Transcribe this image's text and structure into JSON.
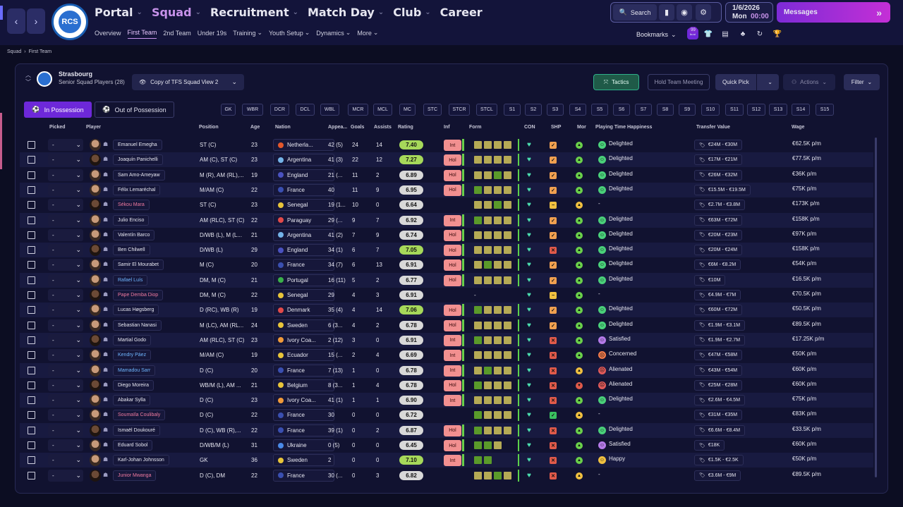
{
  "nav": {
    "main": [
      {
        "label": "Portal",
        "active": false
      },
      {
        "label": "Squad",
        "active": true
      },
      {
        "label": "Recruitment",
        "active": false
      },
      {
        "label": "Match Day",
        "active": false
      },
      {
        "label": "Club",
        "active": false
      },
      {
        "label": "Career",
        "active": false
      }
    ],
    "sub": [
      {
        "label": "Overview",
        "active": false,
        "dd": false
      },
      {
        "label": "First Team",
        "active": true,
        "dd": false
      },
      {
        "label": "2nd Team",
        "active": false,
        "dd": false
      },
      {
        "label": "Under 19s",
        "active": false,
        "dd": false
      },
      {
        "label": "Training",
        "active": false,
        "dd": true
      },
      {
        "label": "Youth Setup",
        "active": false,
        "dd": true
      },
      {
        "label": "Dynamics",
        "active": false,
        "dd": true
      },
      {
        "label": "More",
        "active": false,
        "dd": true
      }
    ]
  },
  "topbar": {
    "search_label": "Search",
    "date": "1/6/2026",
    "day": "Mon",
    "time": "00:00",
    "messages_label": "Messages",
    "bookmarks_label": "Bookmarks",
    "badge": "99"
  },
  "breadcrumb": {
    "root": "Squad",
    "current": "First Team"
  },
  "team": {
    "name": "Strasbourg",
    "subtitle": "Senior Squad Players (28)"
  },
  "view_name": "Copy of TFS Squad View 2",
  "buttons": {
    "tactics": "Tactics",
    "hold_meeting": "Hold Team Meeting",
    "quick_pick": "Quick Pick",
    "actions": "Actions",
    "filter": "Filter"
  },
  "tabs": {
    "in_possession": "In Possession",
    "out_possession": "Out of Possession"
  },
  "positions": [
    "GK",
    "WBR",
    "DCR",
    "DCL",
    "WBL",
    "MCR",
    "MCL",
    "MC",
    "STC",
    "STCR",
    "STCL",
    "S1",
    "S2",
    "S3",
    "S4",
    "S5",
    "S6",
    "S7",
    "S8",
    "S9",
    "S10",
    "S11",
    "S12",
    "S13",
    "S14",
    "S15"
  ],
  "columns": {
    "picked": "Picked",
    "player": "Player",
    "position": "Position",
    "age": "Age",
    "nation": "Nation",
    "apps": "Appea...",
    "goals": "Goals",
    "assists": "Assists",
    "rating": "Rating",
    "inf": "Inf",
    "form": "Form",
    "con": "CON",
    "shp": "SHP",
    "mor": "Mor",
    "pth": "Playing Time Happiness",
    "tv": "Transfer Value",
    "wage": "Wage"
  },
  "colors": {
    "accent": "#6d28d9",
    "rating_good": "#8fd14a",
    "rating_ok": "#d8d8d8",
    "inf": "#f29090"
  },
  "rows": [
    {
      "picked": "-",
      "name": "Emanuel Emegha",
      "nc": "",
      "pos": "ST (C)",
      "age": "23",
      "nation": "Netherla...",
      "ncol": "#e2572b",
      "apps": "42 (5)",
      "goals": "24",
      "assists": "14",
      "rating": "7.40",
      "rc": "#a6d85a",
      "inf": "Int",
      "form": [
        "o",
        "o",
        "o",
        "o"
      ],
      "shp": "ok",
      "mor": "g",
      "pth": "Delighted",
      "ph": "g",
      "tv": "€24M - €30M",
      "wage": "€62.5K p/m"
    },
    {
      "picked": "-",
      "name": "Joaquín Panichelli",
      "nc": "",
      "pos": "AM (C), ST (C)",
      "age": "23",
      "nation": "Argentina",
      "ncol": "#74b3e8",
      "apps": "41 (3)",
      "goals": "22",
      "assists": "12",
      "rating": "7.27",
      "rc": "#a6d85a",
      "inf": "Hol",
      "form": [
        "o",
        "o",
        "o",
        "o"
      ],
      "shp": "ok",
      "mor": "g",
      "pth": "Delighted",
      "ph": "g",
      "tv": "€17M - €21M",
      "wage": "€77.5K p/m"
    },
    {
      "picked": "-",
      "name": "Sam Amo-Ameyaw",
      "nc": "",
      "pos": "M (R), AM (RL),...",
      "age": "19",
      "nation": "England",
      "ncol": "#4a52c0",
      "apps": "21 (...",
      "goals": "11",
      "assists": "2",
      "rating": "6.89",
      "rc": "#d8d8d8",
      "inf": "Hol",
      "form": [
        "o",
        "o",
        "g",
        "o"
      ],
      "shp": "ok",
      "mor": "g",
      "pth": "Delighted",
      "ph": "g",
      "tv": "€26M - €32M",
      "wage": "€36K p/m"
    },
    {
      "picked": "-",
      "name": "Félix Lemaréchal",
      "nc": "",
      "pos": "M/AM (C)",
      "age": "22",
      "nation": "France",
      "ncol": "#3a4fb0",
      "apps": "40",
      "goals": "11",
      "assists": "9",
      "rating": "6.95",
      "rc": "#d8d8d8",
      "inf": "Hol",
      "form": [
        "g",
        "o",
        "o",
        "o"
      ],
      "shp": "ok",
      "mor": "g",
      "pth": "Delighted",
      "ph": "g",
      "tv": "€15.5M - €19.5M",
      "wage": "€75K p/m"
    },
    {
      "picked": "-",
      "name": "Sékou Mara",
      "nc": "red",
      "pos": "ST (C)",
      "age": "23",
      "nation": "Senegal",
      "ncol": "#e8c43a",
      "apps": "19 (1...",
      "goals": "10",
      "assists": "0",
      "rating": "6.64",
      "rc": "#d8d8d8",
      "inf": "",
      "form": [
        "o",
        "o",
        "g",
        "o"
      ],
      "shp": "mid",
      "mor": "y",
      "pth": "-",
      "ph": "",
      "tv": "€2.7M - €3.8M",
      "wage": "€173K p/m"
    },
    {
      "picked": "-",
      "name": "Julio Enciso",
      "nc": "",
      "pos": "AM (RLC), ST (C)",
      "age": "22",
      "nation": "Paraguay",
      "ncol": "#e24a4a",
      "apps": "29 (...",
      "goals": "9",
      "assists": "7",
      "rating": "6.92",
      "rc": "#d8d8d8",
      "inf": "Int",
      "form": [
        "g",
        "o",
        "o",
        "o"
      ],
      "shp": "ok",
      "mor": "g",
      "pth": "Delighted",
      "ph": "g",
      "tv": "€63M - €72M",
      "wage": "€158K p/m"
    },
    {
      "picked": "-",
      "name": "Valentín Barco",
      "nc": "",
      "pos": "D/WB (L), M (L...",
      "age": "21",
      "nation": "Argentina",
      "ncol": "#74b3e8",
      "apps": "41 (2)",
      "goals": "7",
      "assists": "9",
      "rating": "6.74",
      "rc": "#d8d8d8",
      "inf": "Hol",
      "form": [
        "o",
        "o",
        "o",
        "o"
      ],
      "shp": "ok",
      "mor": "g",
      "pth": "Delighted",
      "ph": "g",
      "tv": "€20M - €23M",
      "wage": "€97K p/m"
    },
    {
      "picked": "-",
      "name": "Ben Chilwell",
      "nc": "",
      "pos": "D/WB (L)",
      "age": "29",
      "nation": "England",
      "ncol": "#4a52c0",
      "apps": "34 (1)",
      "goals": "6",
      "assists": "7",
      "rating": "7.05",
      "rc": "#a6d85a",
      "inf": "Hol",
      "form": [
        "o",
        "o",
        "o",
        "o"
      ],
      "shp": "bad",
      "mor": "g",
      "pth": "Delighted",
      "ph": "g",
      "tv": "€20M - €24M",
      "wage": "€158K p/m"
    },
    {
      "picked": "-",
      "name": "Samir El Mourabet",
      "nc": "",
      "pos": "M (C)",
      "age": "20",
      "nation": "France",
      "ncol": "#3a4fb0",
      "apps": "34 (7)",
      "goals": "6",
      "assists": "13",
      "rating": "6.91",
      "rc": "#d8d8d8",
      "inf": "Hol",
      "form": [
        "o",
        "g",
        "o",
        "o"
      ],
      "shp": "ok",
      "mor": "g",
      "pth": "Delighted",
      "ph": "g",
      "tv": "€6M - €8.2M",
      "wage": "€54K p/m"
    },
    {
      "picked": "-",
      "name": "Rafael Luís",
      "nc": "blue",
      "pos": "DM, M (C)",
      "age": "21",
      "nation": "Portugal",
      "ncol": "#3ab04a",
      "apps": "16 (11)",
      "goals": "5",
      "assists": "2",
      "rating": "6.77",
      "rc": "#d8d8d8",
      "inf": "Hol",
      "form": [
        "o",
        "o",
        "o",
        "o"
      ],
      "shp": "ok",
      "mor": "g",
      "pth": "Delighted",
      "ph": "g",
      "tv": "€10M",
      "wage": "€16.5K p/m"
    },
    {
      "picked": "-",
      "name": "Pape Demba Diop",
      "nc": "red",
      "pos": "DM, M (C)",
      "age": "22",
      "nation": "Senegal",
      "ncol": "#e8c43a",
      "apps": "29",
      "goals": "4",
      "assists": "3",
      "rating": "6.91",
      "rc": "#d8d8d8",
      "inf": "",
      "form": [],
      "shp": "mid",
      "mor": "g",
      "pth": "-",
      "ph": "",
      "tv": "€4.9M - €7M",
      "wage": "€70.5K p/m"
    },
    {
      "picked": "-",
      "name": "Lucas Høgsberg",
      "nc": "",
      "pos": "D (RC), WB (R)",
      "age": "19",
      "nation": "Denmark",
      "ncol": "#e24a4a",
      "apps": "35 (4)",
      "goals": "4",
      "assists": "14",
      "rating": "7.06",
      "rc": "#a6d85a",
      "inf": "Hol",
      "form": [
        "g",
        "o",
        "o",
        "o"
      ],
      "shp": "ok",
      "mor": "g",
      "pth": "Delighted",
      "ph": "g",
      "tv": "€60M - €72M",
      "wage": "€50.5K p/m"
    },
    {
      "picked": "-",
      "name": "Sebastian Nanasi",
      "nc": "",
      "pos": "M (LC), AM (RL...",
      "age": "24",
      "nation": "Sweden",
      "ncol": "#e8c43a",
      "apps": "6 (3...",
      "goals": "4",
      "assists": "2",
      "rating": "6.78",
      "rc": "#d8d8d8",
      "inf": "Hol",
      "form": [
        "o",
        "o",
        "o",
        "o"
      ],
      "shp": "ok",
      "mor": "g",
      "pth": "Delighted",
      "ph": "g",
      "tv": "€1.9M - €3.1M",
      "wage": "€89.5K p/m"
    },
    {
      "picked": "-",
      "name": "Martial Godo",
      "nc": "",
      "pos": "AM (RLC), ST (C)",
      "age": "23",
      "nation": "Ivory Coa...",
      "ncol": "#f09a3a",
      "apps": "2 (12)",
      "goals": "3",
      "assists": "0",
      "rating": "6.91",
      "rc": "#d8d8d8",
      "inf": "Int",
      "form": [
        "g",
        "o",
        "o",
        "o"
      ],
      "shp": "bad",
      "mor": "g",
      "pth": "Satisfied",
      "ph": "s",
      "tv": "€1.9M - €2.7M",
      "wage": "€17.25K p/m"
    },
    {
      "picked": "-",
      "name": "Kendry Páez",
      "nc": "blue",
      "pos": "M/AM (C)",
      "age": "19",
      "nation": "Ecuador",
      "ncol": "#e8c43a",
      "apps": "15 (...",
      "goals": "2",
      "assists": "4",
      "rating": "6.69",
      "rc": "#d8d8d8",
      "inf": "Int",
      "form": [
        "o",
        "o",
        "o",
        "o"
      ],
      "shp": "bad",
      "mor": "g",
      "pth": "Concerned",
      "ph": "c",
      "tv": "€47M - €58M",
      "wage": "€50K p/m"
    },
    {
      "picked": "-",
      "name": "Mamadou Sarr",
      "nc": "blue",
      "pos": "D (C)",
      "age": "20",
      "nation": "France",
      "ncol": "#3a4fb0",
      "apps": "7 (13)",
      "goals": "1",
      "assists": "0",
      "rating": "6.78",
      "rc": "#d8d8d8",
      "inf": "Int",
      "form": [
        "o",
        "g",
        "o",
        "o"
      ],
      "shp": "bad",
      "mor": "y",
      "pth": "Alienated",
      "ph": "a",
      "tv": "€43M - €54M",
      "wage": "€60K p/m"
    },
    {
      "picked": "-",
      "name": "Diego Moreira",
      "nc": "",
      "pos": "WB/M (L), AM ...",
      "age": "21",
      "nation": "Belgium",
      "ncol": "#e8c43a",
      "apps": "8 (3...",
      "goals": "1",
      "assists": "4",
      "rating": "6.78",
      "rc": "#d8d8d8",
      "inf": "Hol",
      "form": [
        "g",
        "o",
        "o",
        "o"
      ],
      "shp": "bad",
      "mor": "r",
      "pth": "Alienated",
      "ph": "a",
      "tv": "€25M - €28M",
      "wage": "€60K p/m"
    },
    {
      "picked": "-",
      "name": "Abakar Sylla",
      "nc": "",
      "pos": "D (C)",
      "age": "23",
      "nation": "Ivory Coa...",
      "ncol": "#f09a3a",
      "apps": "41 (1)",
      "goals": "1",
      "assists": "1",
      "rating": "6.90",
      "rc": "#d8d8d8",
      "inf": "Int",
      "form": [
        "o",
        "o",
        "o",
        "o"
      ],
      "shp": "bad",
      "mor": "g",
      "pth": "Delighted",
      "ph": "g",
      "tv": "€2.6M - €4.5M",
      "wage": "€75K p/m"
    },
    {
      "picked": "-",
      "name": "Soumaïla Coulibaly",
      "nc": "red",
      "pos": "D (C)",
      "age": "22",
      "nation": "France",
      "ncol": "#3a4fb0",
      "apps": "30",
      "goals": "0",
      "assists": "0",
      "rating": "6.72",
      "rc": "#d8d8d8",
      "inf": "",
      "form": [
        "g",
        "o",
        "o",
        "o"
      ],
      "shp": "good",
      "mor": "y",
      "pth": "-",
      "ph": "",
      "tv": "€31M - €35M",
      "wage": "€83K p/m"
    },
    {
      "picked": "-",
      "name": "Ismaël Doukouré",
      "nc": "",
      "pos": "D (C), WB (R),...",
      "age": "22",
      "nation": "France",
      "ncol": "#3a4fb0",
      "apps": "39 (1)",
      "goals": "0",
      "assists": "2",
      "rating": "6.87",
      "rc": "#d8d8d8",
      "inf": "Hol",
      "form": [
        "g",
        "o",
        "o",
        "o"
      ],
      "shp": "bad",
      "mor": "g",
      "pth": "Delighted",
      "ph": "g",
      "tv": "€6.6M - €8.4M",
      "wage": "€33.5K p/m"
    },
    {
      "picked": "-",
      "name": "Eduard Sobol",
      "nc": "",
      "pos": "D/WB/M (L)",
      "age": "31",
      "nation": "Ukraine",
      "ncol": "#4a8ae8",
      "apps": "0 (5)",
      "goals": "0",
      "assists": "0",
      "rating": "6.45",
      "rc": "#d8d8d8",
      "inf": "Hol",
      "form": [
        "g",
        "g",
        "o"
      ],
      "shp": "bad",
      "mor": "g",
      "pth": "Satisfied",
      "ph": "s",
      "tv": "€18K",
      "wage": "€60K p/m"
    },
    {
      "picked": "-",
      "name": "Karl-Johan Johnsson",
      "nc": "",
      "pos": "GK",
      "age": "36",
      "nation": "Sweden",
      "ncol": "#e8c43a",
      "apps": "2",
      "goals": "0",
      "assists": "0",
      "rating": "7.10",
      "rc": "#a6d85a",
      "inf": "Int",
      "form": [
        "g",
        "g"
      ],
      "shp": "bad",
      "mor": "g",
      "pth": "Happy",
      "ph": "h",
      "tv": "€1.5K - €2.5K",
      "wage": "€50K p/m"
    },
    {
      "picked": "-",
      "name": "Junior Mwanga",
      "nc": "red",
      "pos": "D (C), DM",
      "age": "22",
      "nation": "France",
      "ncol": "#3a4fb0",
      "apps": "30 (...",
      "goals": "0",
      "assists": "3",
      "rating": "6.82",
      "rc": "#d8d8d8",
      "inf": "",
      "form": [
        "o",
        "o",
        "g",
        "o"
      ],
      "shp": "bad",
      "mor": "y",
      "pth": "-",
      "ph": "",
      "tv": "€3.6M - €9M",
      "wage": "€89.5K p/m"
    }
  ]
}
